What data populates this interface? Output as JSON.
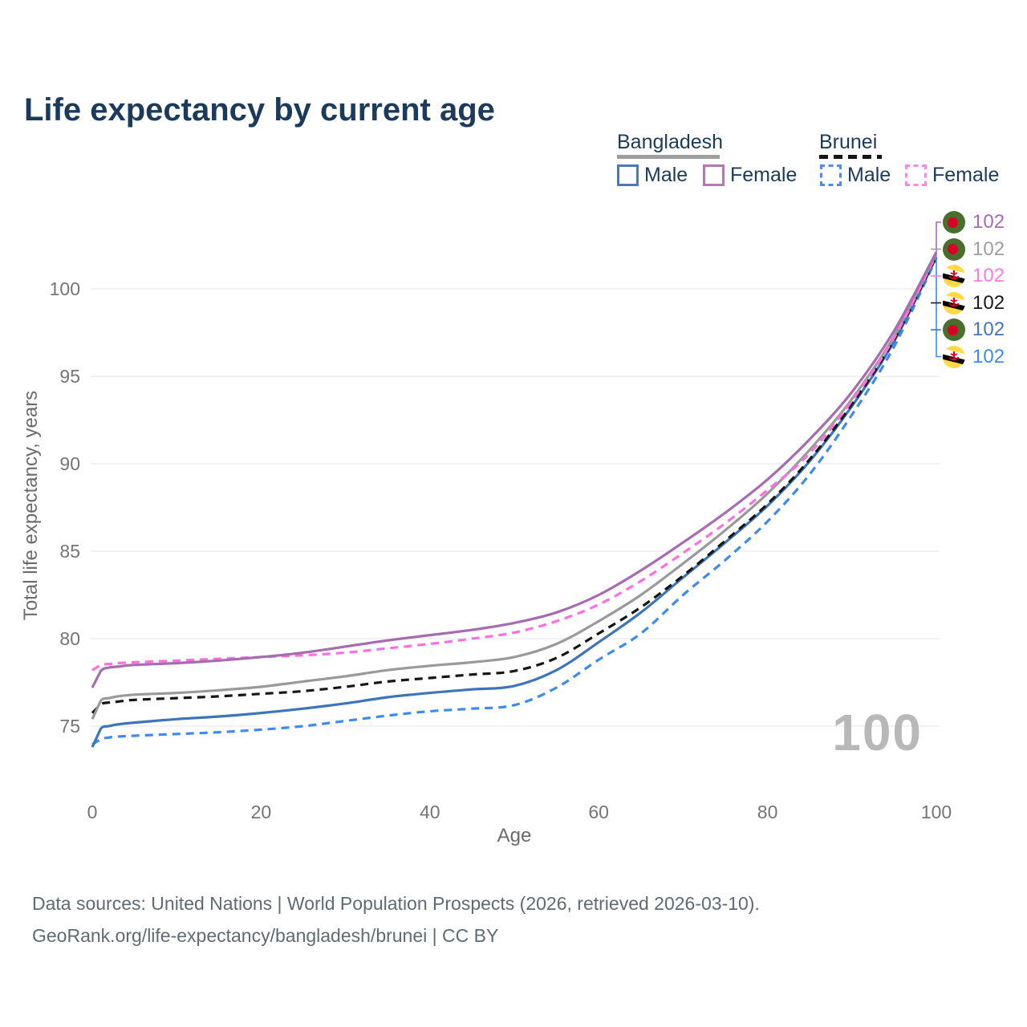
{
  "title": "Life expectancy by current age",
  "legend": {
    "groups": [
      {
        "country": "Bangladesh",
        "underline_style": "solid",
        "underline_color": "#9e9e9e",
        "items": [
          {
            "label": "Male",
            "color": "#4a7ab8",
            "dashed": false
          },
          {
            "label": "Female",
            "color": "#b478b4",
            "dashed": false
          }
        ]
      },
      {
        "country": "Brunei",
        "underline_style": "dashed",
        "underline_color": "#141414",
        "items": [
          {
            "label": "Male",
            "color": "#4d8df0",
            "dashed": true
          },
          {
            "label": "Female",
            "color": "#ff85e8",
            "dashed": true
          }
        ]
      }
    ]
  },
  "chart_data": {
    "type": "line",
    "title": "Life expectancy by current age",
    "xlabel": "Age",
    "ylabel": "Total life expectancy, years",
    "xticks": [
      0,
      20,
      40,
      60,
      80,
      100
    ],
    "yticks": [
      75,
      80,
      85,
      90,
      95,
      100
    ],
    "xlim": [
      0,
      100
    ],
    "ylim": [
      73,
      103
    ],
    "grid": "horizontal-only",
    "hover_age_watermark": "100",
    "series": [
      {
        "name": "brunei-male",
        "country": "Brunei",
        "sex": "Male",
        "color": "#3f8af0",
        "dashed": true,
        "points": [
          [
            0,
            73.95
          ],
          [
            1,
            74.25
          ],
          [
            2,
            74.35
          ],
          [
            3,
            74.4
          ],
          [
            5,
            74.45
          ],
          [
            10,
            74.55
          ],
          [
            15,
            74.65
          ],
          [
            20,
            74.8
          ],
          [
            25,
            75.0
          ],
          [
            30,
            75.3
          ],
          [
            35,
            75.6
          ],
          [
            40,
            75.85
          ],
          [
            45,
            76.0
          ],
          [
            50,
            76.2
          ],
          [
            55,
            77.2
          ],
          [
            60,
            78.8
          ],
          [
            65,
            80.3
          ],
          [
            70,
            82.5
          ],
          [
            75,
            84.5
          ],
          [
            80,
            86.7
          ],
          [
            85,
            89.4
          ],
          [
            90,
            92.8
          ],
          [
            95,
            96.7
          ],
          [
            100,
            101.75
          ]
        ]
      },
      {
        "name": "bangladesh-male",
        "country": "Bangladesh",
        "sex": "Male",
        "color": "#3d76b8",
        "dashed": false,
        "points": [
          [
            0,
            73.8
          ],
          [
            1,
            74.85
          ],
          [
            2,
            75.0
          ],
          [
            3,
            75.1
          ],
          [
            5,
            75.2
          ],
          [
            10,
            75.4
          ],
          [
            15,
            75.55
          ],
          [
            20,
            75.75
          ],
          [
            25,
            76.0
          ],
          [
            30,
            76.3
          ],
          [
            35,
            76.65
          ],
          [
            40,
            76.9
          ],
          [
            45,
            77.1
          ],
          [
            50,
            77.3
          ],
          [
            55,
            78.2
          ],
          [
            60,
            79.8
          ],
          [
            65,
            81.5
          ],
          [
            70,
            83.5
          ],
          [
            75,
            85.5
          ],
          [
            80,
            87.6
          ],
          [
            85,
            90.15
          ],
          [
            90,
            93.3
          ],
          [
            95,
            97.0
          ],
          [
            100,
            101.82
          ]
        ]
      },
      {
        "name": "brunei-both-sexes",
        "country": "Brunei",
        "sex": "Both",
        "color": "#161616",
        "dashed": true,
        "points": [
          [
            0,
            75.75
          ],
          [
            1,
            76.25
          ],
          [
            2,
            76.35
          ],
          [
            3,
            76.4
          ],
          [
            5,
            76.5
          ],
          [
            10,
            76.6
          ],
          [
            15,
            76.7
          ],
          [
            20,
            76.85
          ],
          [
            25,
            77.0
          ],
          [
            30,
            77.25
          ],
          [
            35,
            77.55
          ],
          [
            40,
            77.75
          ],
          [
            45,
            77.95
          ],
          [
            50,
            78.15
          ],
          [
            55,
            78.9
          ],
          [
            60,
            80.3
          ],
          [
            65,
            81.8
          ],
          [
            70,
            83.6
          ],
          [
            75,
            85.6
          ],
          [
            80,
            87.7
          ],
          [
            85,
            90.25
          ],
          [
            90,
            93.4
          ],
          [
            95,
            97.1
          ],
          [
            100,
            101.85
          ]
        ]
      },
      {
        "name": "bangladesh-both-sexes",
        "country": "Bangladesh",
        "sex": "Both",
        "color": "#9a9a9a",
        "dashed": false,
        "points": [
          [
            0,
            75.4
          ],
          [
            1,
            76.45
          ],
          [
            2,
            76.6
          ],
          [
            3,
            76.7
          ],
          [
            5,
            76.8
          ],
          [
            10,
            76.9
          ],
          [
            15,
            77.05
          ],
          [
            20,
            77.25
          ],
          [
            25,
            77.55
          ],
          [
            30,
            77.85
          ],
          [
            35,
            78.2
          ],
          [
            40,
            78.45
          ],
          [
            45,
            78.65
          ],
          [
            50,
            78.95
          ],
          [
            55,
            79.7
          ],
          [
            60,
            81.0
          ],
          [
            65,
            82.5
          ],
          [
            70,
            84.3
          ],
          [
            75,
            86.2
          ],
          [
            80,
            88.3
          ],
          [
            85,
            90.8
          ],
          [
            90,
            93.7
          ],
          [
            95,
            97.3
          ],
          [
            100,
            102.0
          ]
        ]
      },
      {
        "name": "brunei-female",
        "country": "Brunei",
        "sex": "Female",
        "color": "#ff6fe0",
        "dashed": true,
        "points": [
          [
            0,
            78.2
          ],
          [
            1,
            78.5
          ],
          [
            2,
            78.55
          ],
          [
            3,
            78.6
          ],
          [
            5,
            78.65
          ],
          [
            10,
            78.75
          ],
          [
            15,
            78.85
          ],
          [
            20,
            78.95
          ],
          [
            25,
            79.05
          ],
          [
            30,
            79.2
          ],
          [
            35,
            79.45
          ],
          [
            40,
            79.7
          ],
          [
            45,
            80.0
          ],
          [
            50,
            80.35
          ],
          [
            55,
            81.0
          ],
          [
            60,
            81.95
          ],
          [
            65,
            83.3
          ],
          [
            70,
            84.9
          ],
          [
            75,
            86.6
          ],
          [
            80,
            88.5
          ],
          [
            85,
            90.6
          ],
          [
            90,
            93.6
          ],
          [
            95,
            97.2
          ],
          [
            100,
            101.95
          ]
        ]
      },
      {
        "name": "bangladesh-female",
        "country": "Bangladesh",
        "sex": "Female",
        "color": "#a66bb0",
        "dashed": false,
        "points": [
          [
            0,
            77.2
          ],
          [
            1,
            78.15
          ],
          [
            2,
            78.35
          ],
          [
            3,
            78.4
          ],
          [
            5,
            78.5
          ],
          [
            10,
            78.6
          ],
          [
            15,
            78.75
          ],
          [
            20,
            78.95
          ],
          [
            25,
            79.2
          ],
          [
            30,
            79.55
          ],
          [
            35,
            79.9
          ],
          [
            40,
            80.2
          ],
          [
            45,
            80.5
          ],
          [
            50,
            80.9
          ],
          [
            55,
            81.5
          ],
          [
            60,
            82.5
          ],
          [
            65,
            83.9
          ],
          [
            70,
            85.5
          ],
          [
            75,
            87.2
          ],
          [
            80,
            89.1
          ],
          [
            85,
            91.4
          ],
          [
            90,
            94.1
          ],
          [
            95,
            97.6
          ],
          [
            100,
            102.1
          ]
        ]
      }
    ],
    "end_labels": [
      {
        "value": "102",
        "flag": "bangladesh",
        "series": "bangladesh-female",
        "color": "#a76bb5"
      },
      {
        "value": "102",
        "flag": "bangladesh",
        "series": "bangladesh-both-sexes",
        "color": "#9e9e9e"
      },
      {
        "value": "102",
        "flag": "brunei",
        "series": "brunei-female",
        "color": "#ff7be0"
      },
      {
        "value": "102",
        "flag": "brunei",
        "series": "brunei-both-sexes",
        "color": "#1a1a1a"
      },
      {
        "value": "102",
        "flag": "bangladesh",
        "series": "bangladesh-male",
        "color": "#4576b8"
      },
      {
        "value": "102",
        "flag": "brunei",
        "series": "brunei-male",
        "color": "#3f8af0"
      }
    ]
  },
  "footer": {
    "line1": "Data sources: United Nations | World Population Prospects (2026, retrieved 2026-03-10).",
    "line2": "GeoRank.org/life-expectancy/bangladesh/brunei | CC BY"
  }
}
